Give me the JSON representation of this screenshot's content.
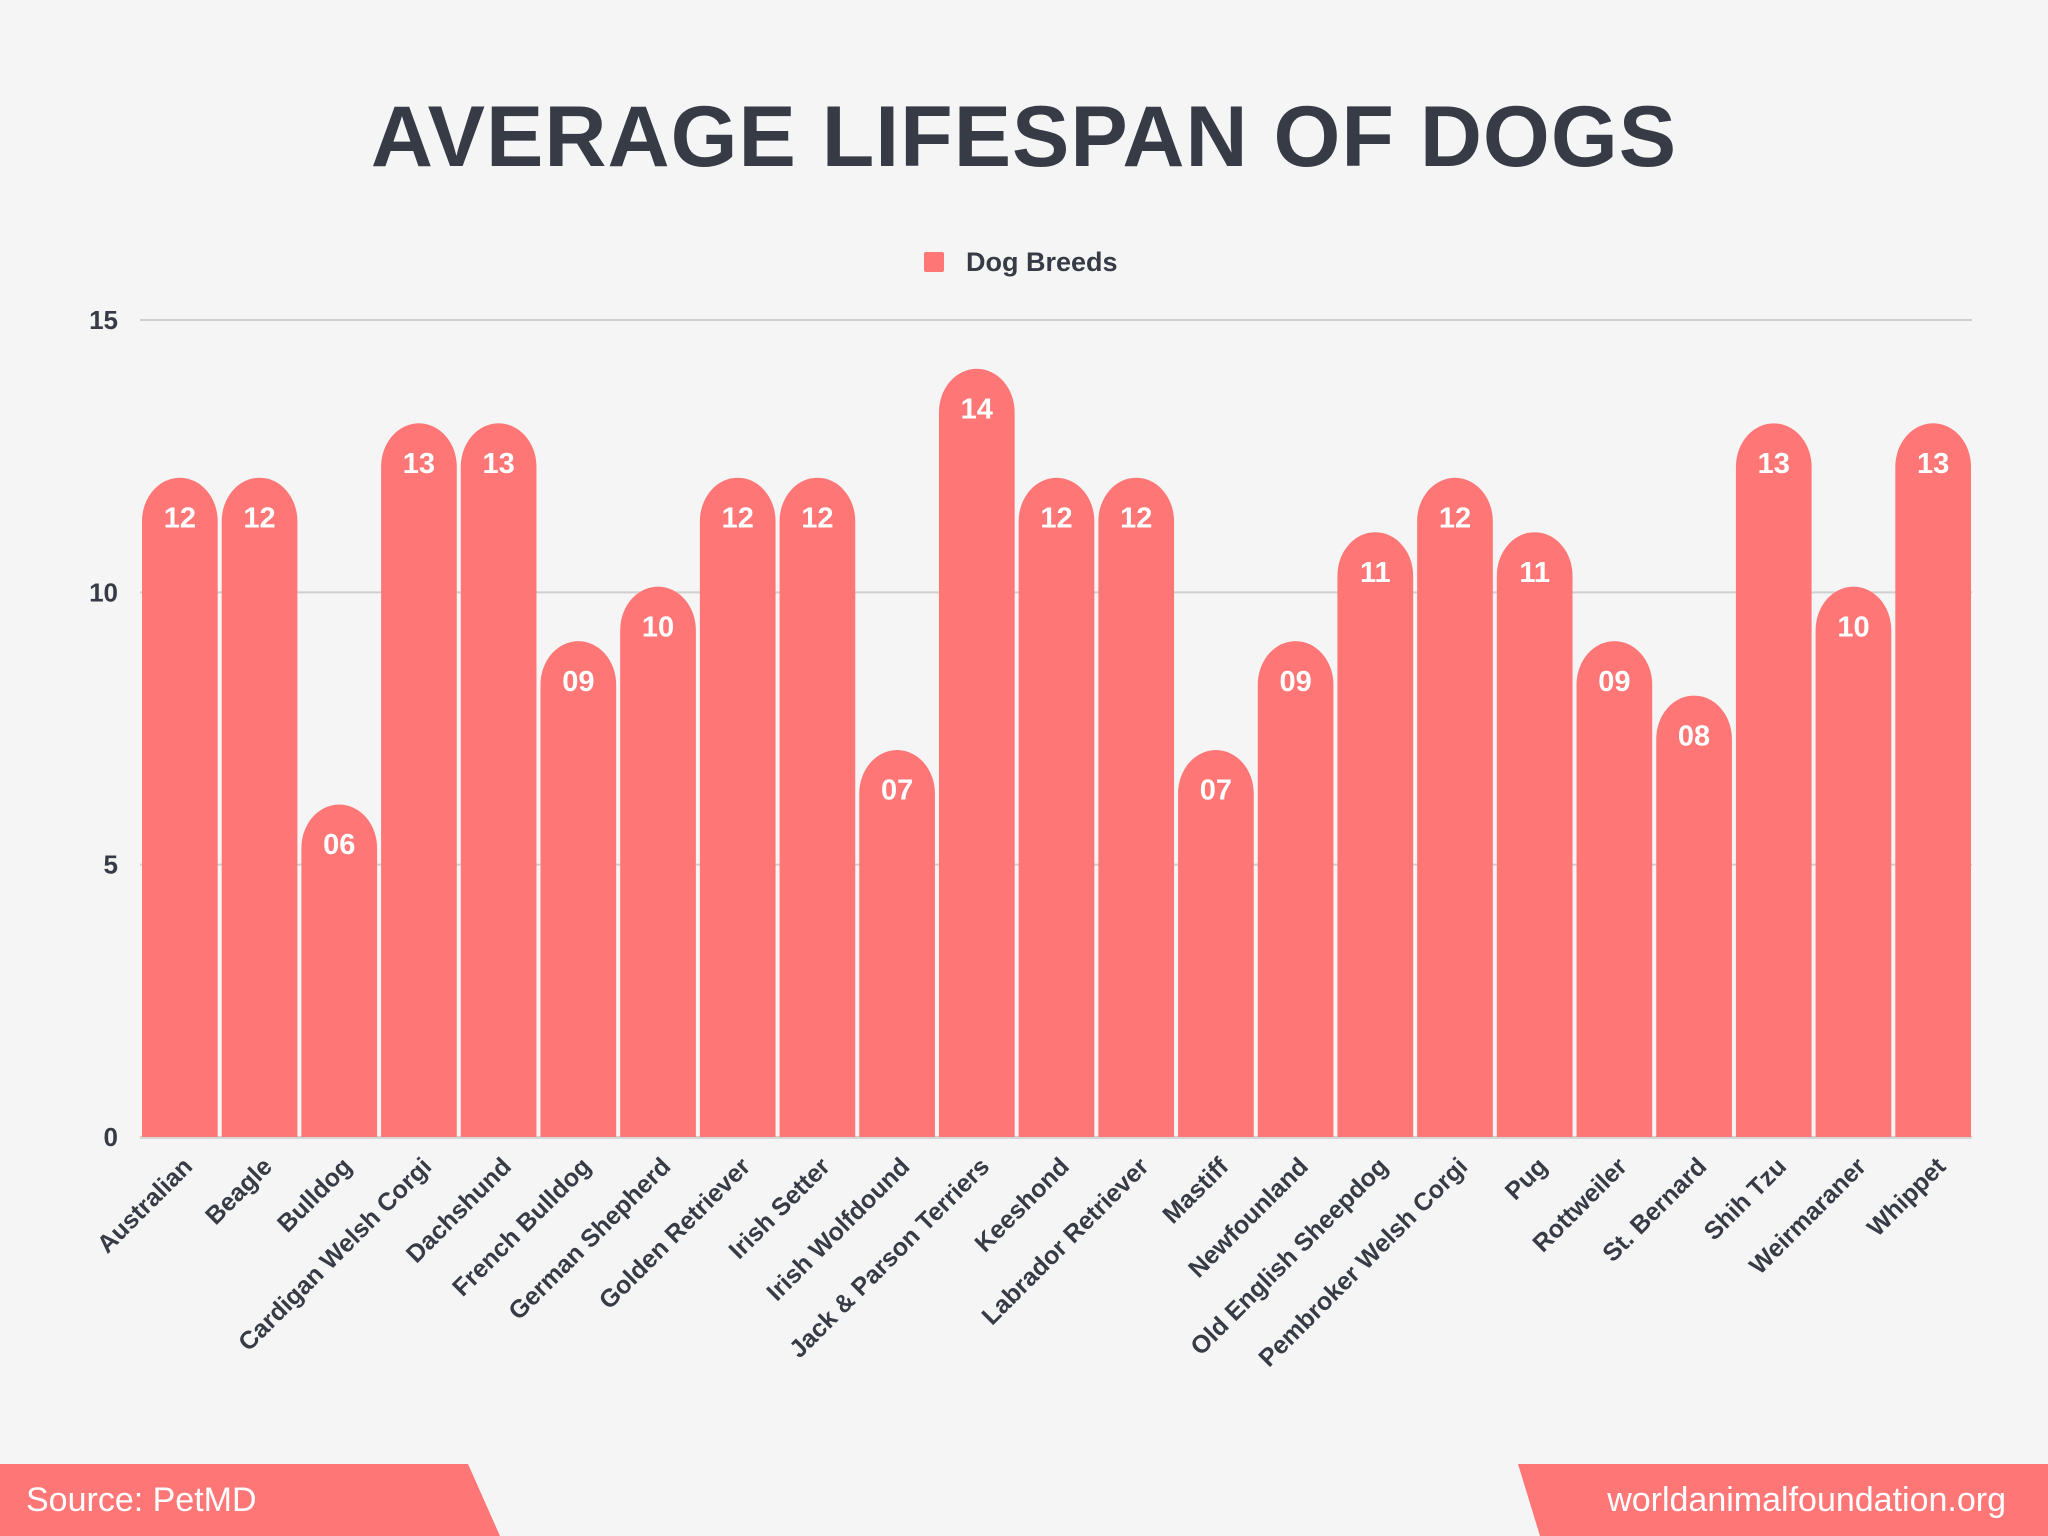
{
  "chart_data": {
    "type": "bar",
    "title": "AVERAGE LIFESPAN OF DOGS",
    "legend": {
      "label": "Dog Breeds",
      "position": "top"
    },
    "categories": [
      "Australian",
      "Beagle",
      "Bulldog",
      "Cardigan Welsh Corgi",
      "Dachshund",
      "French Bulldog",
      "German Shepherd",
      "Golden Retriever",
      "Irish Setter",
      "Irish Wolfdound",
      "Jack & Parson Terriers",
      "Keeshond",
      "Labrador Retriever",
      "Mastiff",
      "Newfounland",
      "Old English Sheepdog",
      "Pembroker Welsh Corgi",
      "Pug",
      "Rottweiler",
      "St. Bernard",
      "Shih Tzu",
      "Weirmaraner",
      "Whippet"
    ],
    "series": [
      {
        "name": "Dog Breeds",
        "values": [
          12,
          12,
          6,
          13,
          13,
          9,
          10,
          12,
          12,
          7,
          14,
          12,
          12,
          7,
          9,
          11,
          12,
          11,
          9,
          8,
          13,
          10,
          13
        ]
      }
    ],
    "data_labels": [
      "12",
      "12",
      "06",
      "13",
      "13",
      "09",
      "10",
      "12",
      "12",
      "07",
      "14",
      "12",
      "12",
      "07",
      "09",
      "11",
      "12",
      "11",
      "09",
      "08",
      "13",
      "10",
      "13"
    ],
    "xlabel": "",
    "ylabel": "",
    "ylim": [
      0,
      15
    ],
    "yticks": [
      "0",
      "5",
      "10",
      "15"
    ],
    "grid": true,
    "colors": {
      "bar": "#ff7676",
      "grid": "#cfcfcf",
      "text": "#363b45",
      "background": "#f5f5f5"
    }
  },
  "footer": {
    "source": "Source: PetMD",
    "website": "worldanimalfoundation.org"
  }
}
